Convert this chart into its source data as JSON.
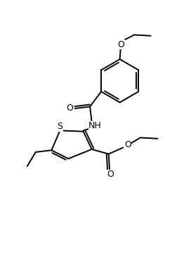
{
  "background_color": "#ffffff",
  "line_color": "#000000",
  "line_width": 1.4,
  "font_size": 8.5,
  "fig_width": 2.72,
  "fig_height": 3.72,
  "dpi": 100,
  "xlim": [
    0,
    10
  ],
  "ylim": [
    0,
    13.65
  ]
}
